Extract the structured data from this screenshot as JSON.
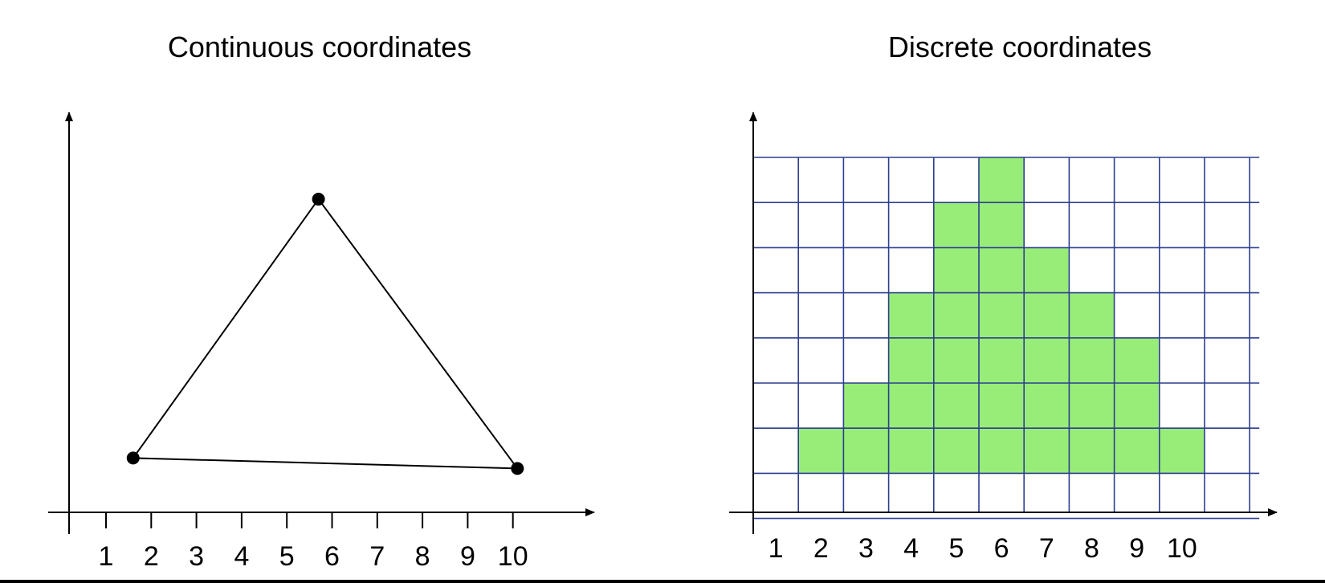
{
  "left_panel": {
    "title": "Continuous coordinates",
    "x_ticks": [
      "1",
      "2",
      "3",
      "4",
      "5",
      "6",
      "7",
      "8",
      "9",
      "10"
    ],
    "triangle": [
      {
        "name": "left-vertex",
        "x": 1.6,
        "y": 1.3
      },
      {
        "name": "top-vertex",
        "x": 5.7,
        "y": 7.5
      },
      {
        "name": "right-vertex",
        "x": 10.1,
        "y": 1.05
      }
    ]
  },
  "right_panel": {
    "title": "Discrete coordinates",
    "x_ticks": [
      "1",
      "2",
      "3",
      "4",
      "5",
      "6",
      "7",
      "8",
      "9",
      "10"
    ],
    "grid": {
      "columns": 11,
      "rows": 8
    },
    "cell_fill_color": "#98ec78",
    "grid_line_color": "#2c3e8f",
    "filled_cells": [
      [
        6
      ],
      [
        5,
        6
      ],
      [
        5,
        6,
        7
      ],
      [
        4,
        5,
        6,
        7,
        8
      ],
      [
        4,
        5,
        6,
        7,
        8,
        9
      ],
      [
        3,
        4,
        5,
        6,
        7,
        8,
        9
      ],
      [
        2,
        3,
        4,
        5,
        6,
        7,
        8,
        9,
        10
      ],
      []
    ]
  }
}
